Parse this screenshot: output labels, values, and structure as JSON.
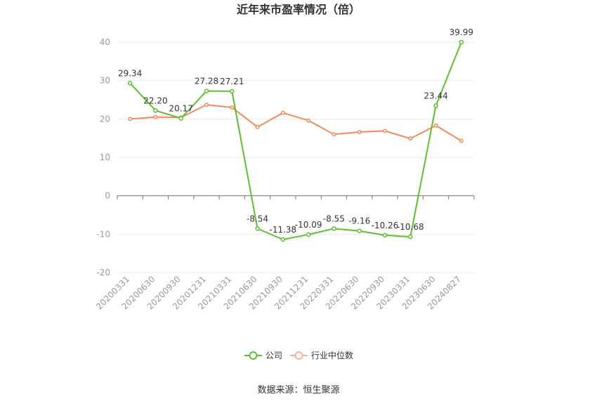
{
  "chart_data": {
    "type": "line",
    "title": "近年来市盈率情况（倍）",
    "categories": [
      "20200331",
      "20200630",
      "20200930",
      "20201231",
      "20210331",
      "20210630",
      "20210930",
      "20211231",
      "20220331",
      "20220630",
      "20220930",
      "20230331",
      "20230630",
      "20240827"
    ],
    "series": [
      {
        "name": "公司",
        "color": "#5cc02d",
        "values": [
          29.34,
          22.2,
          20.17,
          27.28,
          27.21,
          -8.54,
          -11.38,
          -10.09,
          -8.55,
          -9.16,
          -10.26,
          -10.68,
          23.44,
          39.99
        ],
        "labels": [
          "29.34",
          "22.20",
          "20.17",
          "27.28",
          "27.21",
          "-8.54",
          "-11.38",
          "-10.09",
          "-8.55",
          "-9.16",
          "-10.26",
          "-10.68",
          "23.44",
          "39.99"
        ]
      },
      {
        "name": "行业中位数",
        "color": "#f08a5a",
        "values": [
          20.0,
          20.5,
          20.4,
          23.7,
          23.0,
          17.9,
          21.6,
          19.6,
          16.0,
          16.6,
          16.9,
          14.9,
          18.3,
          14.3
        ]
      }
    ],
    "yticks": [
      40,
      30,
      20,
      10,
      0,
      -10,
      -20
    ],
    "ylim": [
      -20,
      40
    ],
    "grid": true,
    "legend_position": "bottom"
  },
  "footer": {
    "source_text": "数据来源：恒生聚源"
  }
}
